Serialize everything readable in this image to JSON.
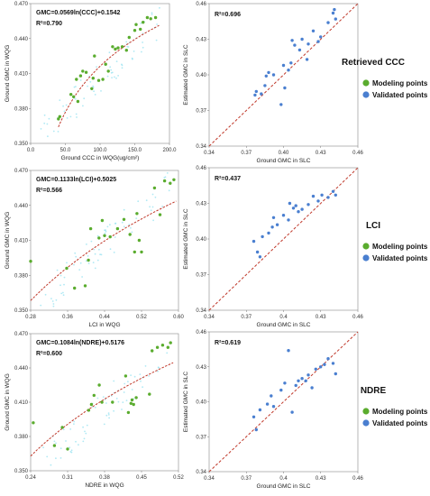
{
  "chart_data": [
    {
      "type": "scatter",
      "panel": "modeling-ccc",
      "xlabel": "Ground CCC in WQG(ug/cm²)",
      "ylabel": "Ground GMC in WQG",
      "xlim": [
        0,
        200
      ],
      "ylim": [
        0.35,
        0.47
      ],
      "xticks": [
        "0.0",
        "50.0",
        "100.0",
        "150.0",
        "200.0"
      ],
      "xtick_values": [
        0,
        50,
        100,
        150,
        200
      ],
      "yticks": [
        "0.350",
        "0.380",
        "0.410",
        "0.440",
        "0.470"
      ],
      "ytick_values": [
        0.35,
        0.38,
        0.41,
        0.44,
        0.47
      ],
      "equation": "GMC=0.0569ln(CCC)+0.1542",
      "r2": "R²=0.790",
      "fit": {
        "kind": "log",
        "a": 0.0569,
        "b": 0.1542,
        "x_range": [
          40,
          185
        ]
      },
      "points": [
        [
          40,
          0.371
        ],
        [
          42,
          0.373
        ],
        [
          58,
          0.392
        ],
        [
          62,
          0.39
        ],
        [
          66,
          0.405
        ],
        [
          68,
          0.386
        ],
        [
          72,
          0.408
        ],
        [
          75,
          0.412
        ],
        [
          80,
          0.411
        ],
        [
          88,
          0.397
        ],
        [
          90,
          0.406
        ],
        [
          92,
          0.425
        ],
        [
          98,
          0.404
        ],
        [
          104,
          0.405
        ],
        [
          108,
          0.418
        ],
        [
          112,
          0.412
        ],
        [
          118,
          0.433
        ],
        [
          122,
          0.431
        ],
        [
          126,
          0.432
        ],
        [
          132,
          0.433
        ],
        [
          138,
          0.43
        ],
        [
          142,
          0.441
        ],
        [
          150,
          0.447
        ],
        [
          152,
          0.452
        ],
        [
          158,
          0.448
        ],
        [
          162,
          0.454
        ],
        [
          168,
          0.458
        ],
        [
          173,
          0.457
        ],
        [
          180,
          0.458
        ]
      ]
    },
    {
      "type": "scatter",
      "panel": "validation-ccc",
      "xlabel": "Ground GMC in SLC",
      "ylabel": "Estimated GMC in SLC",
      "xlim": [
        0.34,
        0.46
      ],
      "ylim": [
        0.34,
        0.46
      ],
      "xticks": [
        "0.34",
        "0.37",
        "0.40",
        "0.43",
        "0.46"
      ],
      "xtick_values": [
        0.34,
        0.37,
        0.4,
        0.43,
        0.46
      ],
      "yticks": [
        "0.34",
        "0.37",
        "0.40",
        "0.43",
        "0.46"
      ],
      "ytick_values": [
        0.34,
        0.37,
        0.4,
        0.43,
        0.46
      ],
      "r2": "R²=0.696",
      "points": [
        [
          0.377,
          0.383
        ],
        [
          0.378,
          0.386
        ],
        [
          0.382,
          0.384
        ],
        [
          0.385,
          0.391
        ],
        [
          0.386,
          0.399
        ],
        [
          0.388,
          0.402
        ],
        [
          0.392,
          0.4
        ],
        [
          0.398,
          0.375
        ],
        [
          0.4,
          0.408
        ],
        [
          0.401,
          0.389
        ],
        [
          0.404,
          0.404
        ],
        [
          0.406,
          0.41
        ],
        [
          0.407,
          0.429
        ],
        [
          0.409,
          0.425
        ],
        [
          0.413,
          0.421
        ],
        [
          0.415,
          0.43
        ],
        [
          0.419,
          0.413
        ],
        [
          0.42,
          0.426
        ],
        [
          0.424,
          0.437
        ],
        [
          0.428,
          0.428
        ],
        [
          0.43,
          0.432
        ],
        [
          0.436,
          0.444
        ],
        [
          0.44,
          0.452
        ],
        [
          0.441,
          0.455
        ],
        [
          0.442,
          0.447
        ]
      ]
    },
    {
      "type": "scatter",
      "panel": "modeling-lci",
      "xlabel": "LCI in WQG",
      "ylabel": "Ground GMC in WQG",
      "xlim": [
        0.28,
        0.6
      ],
      "ylim": [
        0.35,
        0.47
      ],
      "xticks": [
        "0.28",
        "0.36",
        "0.44",
        "0.52",
        "0.60"
      ],
      "xtick_values": [
        0.28,
        0.36,
        0.44,
        0.52,
        0.6
      ],
      "yticks": [
        "0.350",
        "0.380",
        "0.410",
        "0.440",
        "0.470"
      ],
      "ytick_values": [
        0.35,
        0.38,
        0.41,
        0.44,
        0.47
      ],
      "equation": "GMC=0.1133ln(LCI)+0.5025",
      "r2": "R²=0.566",
      "fit": {
        "kind": "log",
        "a": 0.1133,
        "b": 0.5025,
        "x_range": [
          0.28,
          0.595
        ]
      },
      "points": [
        [
          0.28,
          0.392
        ],
        [
          0.358,
          0.386
        ],
        [
          0.375,
          0.369
        ],
        [
          0.398,
          0.371
        ],
        [
          0.405,
          0.393
        ],
        [
          0.41,
          0.42
        ],
        [
          0.428,
          0.412
        ],
        [
          0.435,
          0.427
        ],
        [
          0.44,
          0.414
        ],
        [
          0.452,
          0.413
        ],
        [
          0.468,
          0.42
        ],
        [
          0.482,
          0.428
        ],
        [
          0.495,
          0.415
        ],
        [
          0.505,
          0.4
        ],
        [
          0.51,
          0.433
        ],
        [
          0.515,
          0.41
        ],
        [
          0.52,
          0.4
        ],
        [
          0.548,
          0.455
        ],
        [
          0.56,
          0.432
        ],
        [
          0.57,
          0.461
        ],
        [
          0.582,
          0.459
        ],
        [
          0.59,
          0.462
        ]
      ]
    },
    {
      "type": "scatter",
      "panel": "validation-lci",
      "xlabel": "Ground GMC in SLC",
      "ylabel": "Estimated GMC in SLC",
      "xlim": [
        0.34,
        0.46
      ],
      "ylim": [
        0.34,
        0.46
      ],
      "xticks": [
        "0.34",
        "0.37",
        "0.4",
        "0.43",
        "0.46"
      ],
      "xtick_values": [
        0.34,
        0.37,
        0.4,
        0.43,
        0.46
      ],
      "yticks": [
        "0.34",
        "0.37",
        "0.40",
        "0.43",
        "0.46"
      ],
      "ytick_values": [
        0.34,
        0.37,
        0.4,
        0.43,
        0.46
      ],
      "r2": "R²=0.437",
      "points": [
        [
          0.376,
          0.398
        ],
        [
          0.379,
          0.389
        ],
        [
          0.381,
          0.385
        ],
        [
          0.383,
          0.402
        ],
        [
          0.388,
          0.405
        ],
        [
          0.391,
          0.41
        ],
        [
          0.392,
          0.418
        ],
        [
          0.395,
          0.412
        ],
        [
          0.4,
          0.42
        ],
        [
          0.404,
          0.416
        ],
        [
          0.405,
          0.43
        ],
        [
          0.408,
          0.426
        ],
        [
          0.41,
          0.428
        ],
        [
          0.412,
          0.423
        ],
        [
          0.415,
          0.425
        ],
        [
          0.42,
          0.429
        ],
        [
          0.424,
          0.436
        ],
        [
          0.428,
          0.432
        ],
        [
          0.431,
          0.437
        ],
        [
          0.436,
          0.435
        ],
        [
          0.44,
          0.44
        ],
        [
          0.442,
          0.437
        ]
      ]
    },
    {
      "type": "scatter",
      "panel": "modeling-ndre",
      "xlabel": "NDRE in WQG",
      "ylabel": "Ground GMC in WQG",
      "xlim": [
        0.24,
        0.52
      ],
      "ylim": [
        0.35,
        0.47
      ],
      "xticks": [
        "0.24",
        "0.31",
        "0.38",
        "0.45",
        "0.52"
      ],
      "xtick_values": [
        0.24,
        0.31,
        0.38,
        0.45,
        0.52
      ],
      "yticks": [
        "0.350",
        "0.380",
        "0.410",
        "0.440",
        "0.470"
      ],
      "ytick_values": [
        0.35,
        0.38,
        0.41,
        0.44,
        0.47
      ],
      "equation": "GMC=0.1084ln(NDRE)+0.5176",
      "r2": "R²=0.600",
      "fit": {
        "kind": "log",
        "a": 0.1084,
        "b": 0.5176,
        "x_range": [
          0.24,
          0.51
        ]
      },
      "points": [
        [
          0.245,
          0.392
        ],
        [
          0.285,
          0.372
        ],
        [
          0.3,
          0.388
        ],
        [
          0.31,
          0.369
        ],
        [
          0.35,
          0.403
        ],
        [
          0.355,
          0.408
        ],
        [
          0.36,
          0.416
        ],
        [
          0.37,
          0.425
        ],
        [
          0.375,
          0.41
        ],
        [
          0.395,
          0.41
        ],
        [
          0.42,
          0.433
        ],
        [
          0.425,
          0.401
        ],
        [
          0.43,
          0.409
        ],
        [
          0.432,
          0.412
        ],
        [
          0.435,
          0.408
        ],
        [
          0.44,
          0.414
        ],
        [
          0.465,
          0.417
        ],
        [
          0.47,
          0.455
        ],
        [
          0.48,
          0.458
        ],
        [
          0.49,
          0.46
        ],
        [
          0.5,
          0.458
        ],
        [
          0.505,
          0.462
        ]
      ]
    },
    {
      "type": "scatter",
      "panel": "validation-ndre",
      "xlabel": "Ground GMC in SLC",
      "ylabel": "Estimated GMC in SLC",
      "xlim": [
        0.34,
        0.46
      ],
      "ylim": [
        0.34,
        0.46
      ],
      "xticks": [
        "0.34",
        "0.37",
        "0.4",
        "0.43",
        "0.46"
      ],
      "xtick_values": [
        0.34,
        0.37,
        0.4,
        0.43,
        0.46
      ],
      "yticks": [
        "0.34",
        "0.37",
        "0.40",
        "0.43",
        "0.46"
      ],
      "ytick_values": [
        0.34,
        0.37,
        0.4,
        0.43,
        0.46
      ],
      "r2": "R²=0.619",
      "points": [
        [
          0.376,
          0.387
        ],
        [
          0.378,
          0.376
        ],
        [
          0.381,
          0.393
        ],
        [
          0.387,
          0.398
        ],
        [
          0.39,
          0.405
        ],
        [
          0.392,
          0.396
        ],
        [
          0.398,
          0.41
        ],
        [
          0.401,
          0.416
        ],
        [
          0.404,
          0.444
        ],
        [
          0.407,
          0.391
        ],
        [
          0.41,
          0.414
        ],
        [
          0.412,
          0.418
        ],
        [
          0.415,
          0.42
        ],
        [
          0.418,
          0.418
        ],
        [
          0.42,
          0.423
        ],
        [
          0.423,
          0.412
        ],
        [
          0.426,
          0.428
        ],
        [
          0.43,
          0.43
        ],
        [
          0.433,
          0.432
        ],
        [
          0.436,
          0.437
        ],
        [
          0.44,
          0.433
        ],
        [
          0.442,
          0.424
        ]
      ]
    }
  ],
  "row_labels": [
    "Retrieved CCC",
    "LCI",
    "NDRE"
  ],
  "legend": {
    "modeling_label": "Modeling points",
    "validated_label": "Validated points"
  },
  "colors": {
    "modeling": "#5aac2e",
    "validated": "#4a7fd0",
    "fit_line": "#c0392b",
    "one_to_one": "#c0392b",
    "background_scatter": "#8fe0f0"
  }
}
